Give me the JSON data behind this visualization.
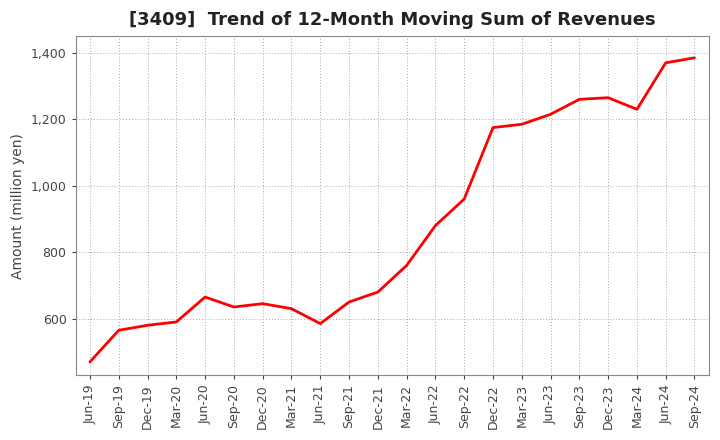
{
  "title": "[3409]  Trend of 12-Month Moving Sum of Revenues",
  "ylabel": "Amount (million yen)",
  "line_color": "#FF0000",
  "background_color": "#FFFFFF",
  "grid_color": "#AAAAAA",
  "ylim": [
    430,
    1450
  ],
  "yticks": [
    600,
    800,
    1000,
    1200,
    1400
  ],
  "dates": [
    "Jun-19",
    "Sep-19",
    "Dec-19",
    "Mar-20",
    "Jun-20",
    "Sep-20",
    "Dec-20",
    "Mar-21",
    "Jun-21",
    "Sep-21",
    "Dec-21",
    "Mar-22",
    "Jun-22",
    "Sep-22",
    "Dec-22",
    "Mar-23",
    "Jun-23",
    "Sep-23",
    "Dec-23",
    "Mar-24",
    "Jun-24",
    "Sep-24"
  ],
  "values": [
    470,
    565,
    580,
    590,
    665,
    635,
    645,
    630,
    585,
    650,
    680,
    760,
    880,
    960,
    1175,
    1185,
    1215,
    1260,
    1265,
    1230,
    1370,
    1385
  ],
  "title_fontsize": 13,
  "ylabel_fontsize": 10,
  "tick_fontsize": 9,
  "linewidth": 2.0
}
